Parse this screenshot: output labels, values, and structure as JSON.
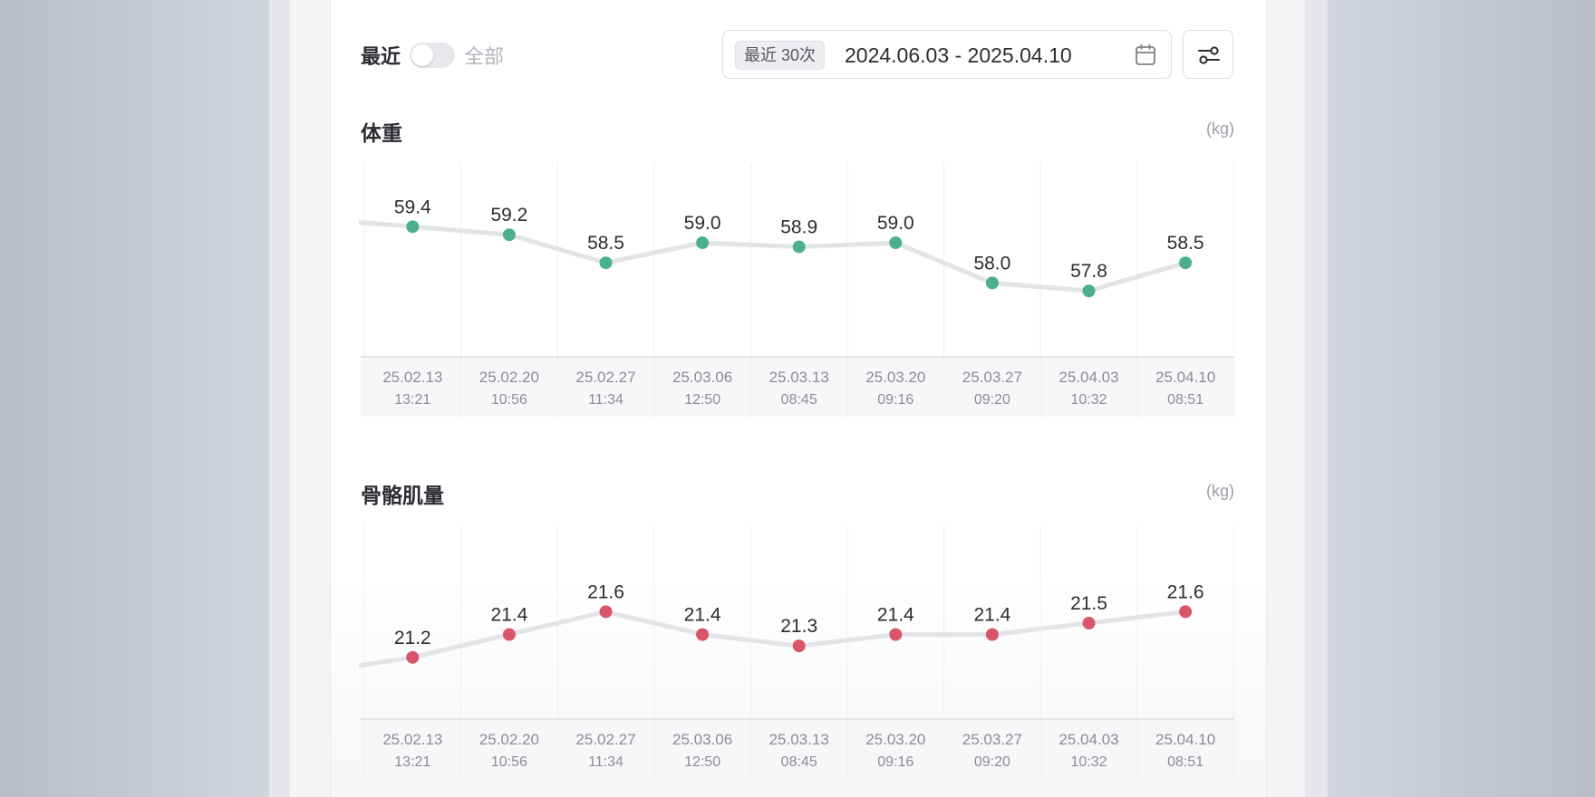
{
  "toggle": {
    "left_label": "最近",
    "right_label": "全部",
    "on": false
  },
  "date_filter": {
    "badge": "最近 30次",
    "range": "2024.06.03 - 2025.04.10"
  },
  "icons": {
    "calendar": "calendar-icon",
    "filter": "sliders-icon"
  },
  "colors": {
    "weight": "#4caf8f",
    "muscle": "#d9566a",
    "line": "#e3e4e8"
  },
  "chart_data": [
    {
      "type": "line",
      "title": "体重",
      "unit": "(kg)",
      "color": "#4caf8f",
      "x": [
        "25.02.13",
        "25.02.20",
        "25.02.27",
        "25.03.06",
        "25.03.13",
        "25.03.20",
        "25.03.27",
        "25.04.03",
        "25.04.10"
      ],
      "times": [
        "13:21",
        "10:56",
        "11:34",
        "12:50",
        "08:45",
        "09:16",
        "09:20",
        "10:32",
        "08:51"
      ],
      "values": [
        59.4,
        59.2,
        58.5,
        59.0,
        58.9,
        59.0,
        58.0,
        57.8,
        58.5
      ],
      "value_labels": [
        "59.4",
        "59.2",
        "58.5",
        "59.0",
        "58.9",
        "59.0",
        "58.0",
        "57.8",
        "58.5"
      ],
      "previous_value": 59.6,
      "ylim": [
        56.7,
        60.4
      ]
    },
    {
      "type": "line",
      "title": "骨骼肌量",
      "unit": "(kg)",
      "color": "#d9566a",
      "x": [
        "25.02.13",
        "25.02.20",
        "25.02.27",
        "25.03.06",
        "25.03.13",
        "25.03.20",
        "25.03.27",
        "25.04.03",
        "25.04.10"
      ],
      "times": [
        "13:21",
        "10:56",
        "11:34",
        "12:50",
        "08:45",
        "09:16",
        "09:20",
        "10:32",
        "08:51"
      ],
      "values": [
        21.2,
        21.4,
        21.6,
        21.4,
        21.3,
        21.4,
        21.4,
        21.5,
        21.6
      ],
      "value_labels": [
        "21.2",
        "21.4",
        "21.6",
        "21.4",
        "21.3",
        "21.4",
        "21.4",
        "21.5",
        "21.6"
      ],
      "previous_value": 21.07,
      "ylim": [
        20.85,
        22.15
      ]
    }
  ]
}
